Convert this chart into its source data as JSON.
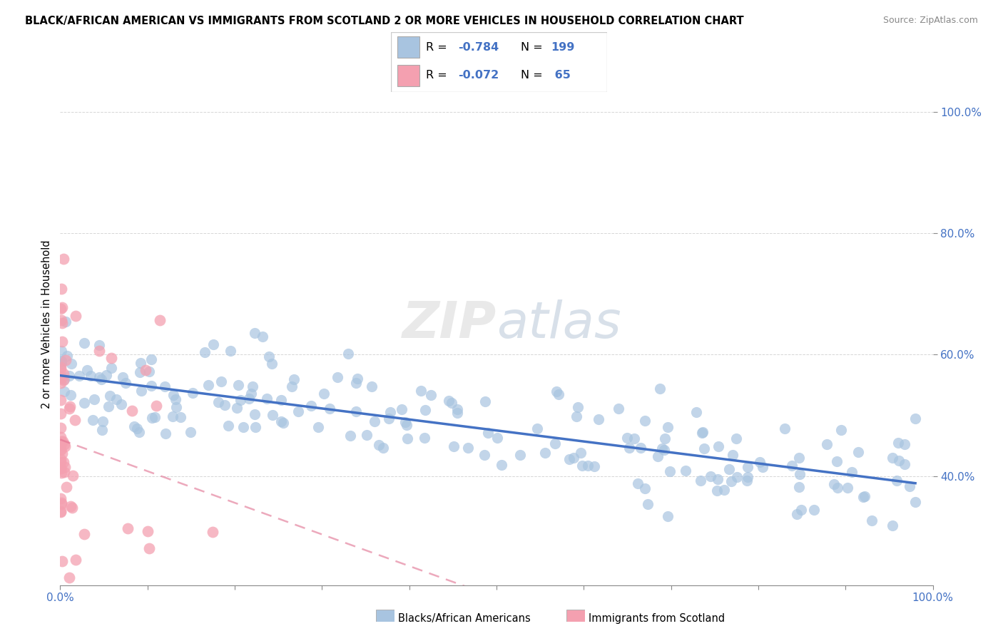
{
  "title": "BLACK/AFRICAN AMERICAN VS IMMIGRANTS FROM SCOTLAND 2 OR MORE VEHICLES IN HOUSEHOLD CORRELATION CHART",
  "source": "Source: ZipAtlas.com",
  "ylabel": "2 or more Vehicles in Household",
  "blue_R": -0.784,
  "blue_N": 199,
  "pink_R": -0.072,
  "pink_N": 65,
  "blue_color": "#a8c4e0",
  "pink_color": "#f4a0b0",
  "trendline_blue": "#4472c4",
  "trendline_pink": "#e07090",
  "legend_label_blue": "Blacks/African Americans",
  "legend_label_pink": "Immigrants from Scotland",
  "blue_seed": 42,
  "pink_seed": 7,
  "ylim_low": 0.22,
  "ylim_high": 1.08
}
